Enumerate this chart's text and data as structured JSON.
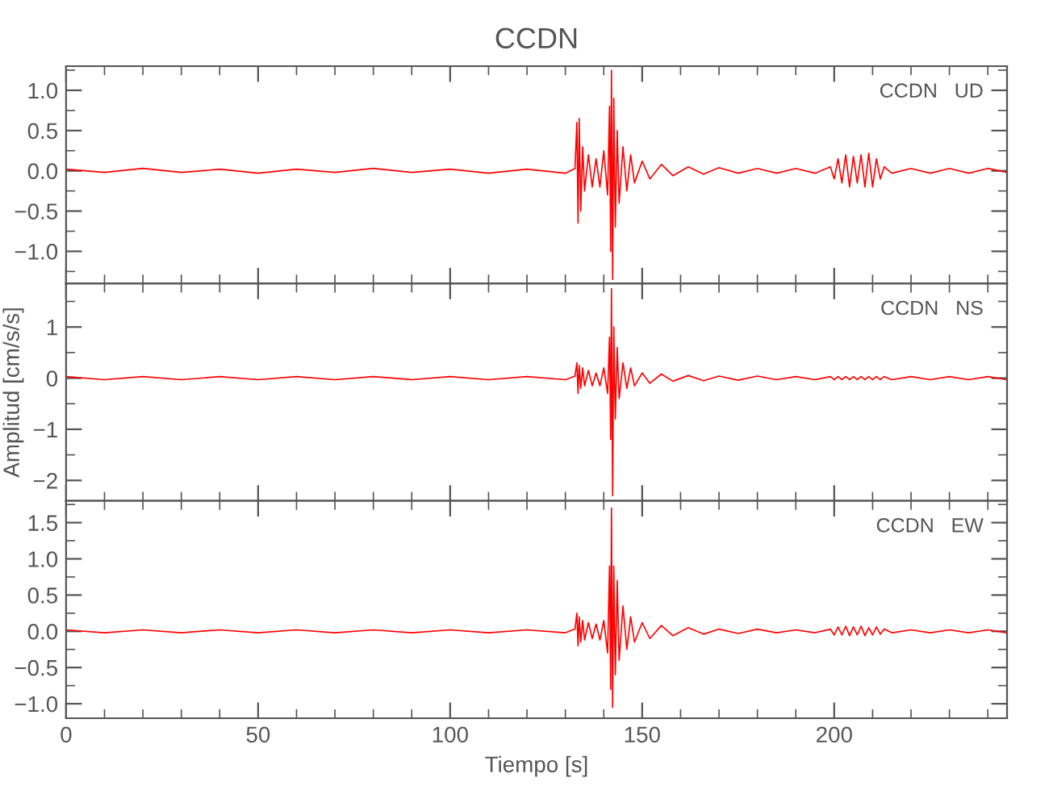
{
  "chart_data": [
    {
      "type": "line",
      "title": "CCDN",
      "annotations": [
        "CCDN   UD"
      ],
      "tick_labels": "y",
      "grid": false,
      "legend": false,
      "x": [
        0,
        10,
        20,
        30,
        40,
        50,
        60,
        70,
        80,
        90,
        100,
        110,
        120,
        130,
        132.5,
        133,
        133.3,
        133.6,
        134,
        134.5,
        135,
        136,
        137,
        138,
        139,
        140,
        141,
        141.5,
        141.8,
        142,
        142.3,
        142.6,
        143,
        143.5,
        144,
        145,
        146,
        147,
        148,
        150,
        152,
        155,
        158,
        162,
        166,
        170,
        175,
        180,
        185,
        190,
        195,
        199,
        200,
        201,
        202,
        203,
        204,
        205,
        206,
        207,
        208,
        209,
        210,
        211,
        212,
        213,
        215,
        220,
        225,
        230,
        235,
        240,
        245
      ],
      "xlim": [
        0,
        245
      ],
      "xticks": [
        0,
        50,
        100,
        150,
        200
      ],
      "ylim": [
        -1.4,
        1.3
      ],
      "yticks": [
        {
          "value": -1.0,
          "label": "−1.0"
        },
        {
          "value": -0.5,
          "label": "−0.5"
        },
        {
          "value": 0.0,
          "label": "0.0"
        },
        {
          "value": 0.5,
          "label": "0.5"
        },
        {
          "value": 1.0,
          "label": "1.0"
        }
      ],
      "series": [
        {
          "color": "#ff0000",
          "values": [
            0.02,
            -0.02,
            0.03,
            -0.02,
            0.02,
            -0.03,
            0.02,
            -0.02,
            0.03,
            -0.02,
            0.02,
            -0.03,
            0.02,
            -0.03,
            0.03,
            0.6,
            -0.65,
            0.65,
            -0.5,
            0.3,
            -0.25,
            0.2,
            -0.2,
            0.15,
            -0.2,
            0.25,
            -0.3,
            0.8,
            -1.0,
            1.25,
            -1.35,
            0.9,
            -0.7,
            0.5,
            -0.4,
            0.3,
            -0.25,
            0.2,
            -0.15,
            0.12,
            -0.1,
            0.08,
            -0.06,
            0.05,
            -0.04,
            0.04,
            -0.03,
            0.03,
            -0.03,
            0.03,
            -0.03,
            0.05,
            -0.1,
            0.15,
            -0.15,
            0.2,
            -0.2,
            0.18,
            -0.15,
            0.2,
            -0.2,
            0.22,
            -0.2,
            0.15,
            -0.1,
            0.05,
            -0.03,
            0.03,
            -0.03,
            0.03,
            -0.03,
            0.03,
            -0.02
          ]
        }
      ]
    },
    {
      "type": "line",
      "ylabel": "Amplitud [cm/s/s]",
      "annotations": [
        "CCDN   NS"
      ],
      "tick_labels": "y",
      "grid": false,
      "legend": false,
      "x": [
        0,
        10,
        20,
        30,
        40,
        50,
        60,
        70,
        80,
        90,
        100,
        110,
        120,
        130,
        132.5,
        133,
        133.3,
        133.6,
        134,
        134.5,
        135,
        136,
        137,
        138,
        139,
        140,
        141,
        141.5,
        141.8,
        142,
        142.3,
        142.6,
        143,
        143.5,
        144,
        145,
        146,
        147,
        148,
        150,
        152,
        155,
        158,
        162,
        166,
        170,
        175,
        180,
        185,
        190,
        195,
        199,
        200,
        201,
        202,
        203,
        204,
        205,
        206,
        207,
        208,
        209,
        210,
        211,
        212,
        213,
        215,
        220,
        225,
        230,
        235,
        240,
        245
      ],
      "xlim": [
        0,
        245
      ],
      "xticks": [
        0,
        50,
        100,
        150,
        200
      ],
      "ylim": [
        -2.4,
        1.85
      ],
      "yticks": [
        {
          "value": -2,
          "label": "−2"
        },
        {
          "value": -1,
          "label": "−1"
        },
        0,
        1
      ],
      "series": [
        {
          "color": "#ff0000",
          "values": [
            0.03,
            -0.03,
            0.03,
            -0.03,
            0.03,
            -0.03,
            0.03,
            -0.03,
            0.03,
            -0.03,
            0.03,
            -0.03,
            0.03,
            -0.03,
            0.04,
            0.3,
            -0.3,
            0.25,
            -0.2,
            0.2,
            -0.15,
            0.15,
            -0.15,
            0.1,
            -0.15,
            0.2,
            -0.3,
            0.8,
            -1.2,
            1.75,
            -2.3,
            1.0,
            -0.8,
            0.6,
            -0.4,
            0.3,
            -0.2,
            0.2,
            -0.15,
            0.1,
            -0.1,
            0.08,
            -0.06,
            0.05,
            -0.05,
            0.04,
            -0.04,
            0.04,
            -0.03,
            0.03,
            -0.03,
            0.03,
            -0.03,
            0.03,
            -0.03,
            0.03,
            -0.03,
            0.03,
            -0.03,
            0.03,
            -0.03,
            0.03,
            -0.03,
            0.03,
            -0.03,
            0.03,
            -0.03,
            0.03,
            -0.03,
            0.03,
            -0.03,
            0.03,
            -0.03
          ]
        }
      ]
    },
    {
      "type": "line",
      "xlabel": "Tiempo [s]",
      "annotations": [
        "CCDN   EW"
      ],
      "grid": false,
      "legend": false,
      "x": [
        0,
        10,
        20,
        30,
        40,
        50,
        60,
        70,
        80,
        90,
        100,
        110,
        120,
        130,
        132.5,
        133,
        133.3,
        133.6,
        134,
        134.5,
        135,
        136,
        137,
        138,
        139,
        140,
        141,
        141.5,
        141.8,
        142,
        142.3,
        142.6,
        143,
        143.5,
        144,
        145,
        146,
        147,
        148,
        150,
        152,
        155,
        158,
        162,
        166,
        170,
        175,
        180,
        185,
        190,
        195,
        199,
        200,
        201,
        202,
        203,
        204,
        205,
        206,
        207,
        208,
        209,
        210,
        211,
        212,
        213,
        215,
        220,
        225,
        230,
        235,
        240,
        245
      ],
      "xlim": [
        0,
        245
      ],
      "xticks": [
        0,
        50,
        100,
        150,
        200
      ],
      "ylim": [
        -1.2,
        1.8
      ],
      "yticks": [
        {
          "value": -1.0,
          "label": "−1.0"
        },
        {
          "value": -0.5,
          "label": "−0.5"
        },
        {
          "value": 0.0,
          "label": "0.0"
        },
        {
          "value": 0.5,
          "label": "0.5"
        },
        {
          "value": 1.0,
          "label": "1.0"
        },
        {
          "value": 1.5,
          "label": "1.5"
        }
      ],
      "series": [
        {
          "color": "#ff0000",
          "values": [
            0.02,
            -0.02,
            0.02,
            -0.02,
            0.02,
            -0.02,
            0.02,
            -0.02,
            0.02,
            -0.02,
            0.02,
            -0.02,
            0.02,
            -0.02,
            0.03,
            0.25,
            -0.2,
            0.2,
            -0.15,
            0.15,
            -0.12,
            0.12,
            -0.1,
            0.1,
            -0.12,
            0.15,
            -0.3,
            0.9,
            -0.8,
            1.7,
            -1.05,
            0.9,
            -0.6,
            0.7,
            -0.4,
            0.35,
            -0.25,
            0.2,
            -0.15,
            0.12,
            -0.1,
            0.08,
            -0.06,
            0.05,
            -0.04,
            0.03,
            -0.03,
            0.03,
            -0.02,
            0.02,
            -0.02,
            0.03,
            -0.05,
            0.06,
            -0.05,
            0.07,
            -0.06,
            0.06,
            -0.05,
            0.07,
            -0.06,
            0.05,
            -0.05,
            0.06,
            -0.04,
            0.03,
            -0.02,
            0.02,
            -0.02,
            0.02,
            -0.02,
            0.02,
            -0.02
          ]
        }
      ]
    }
  ]
}
